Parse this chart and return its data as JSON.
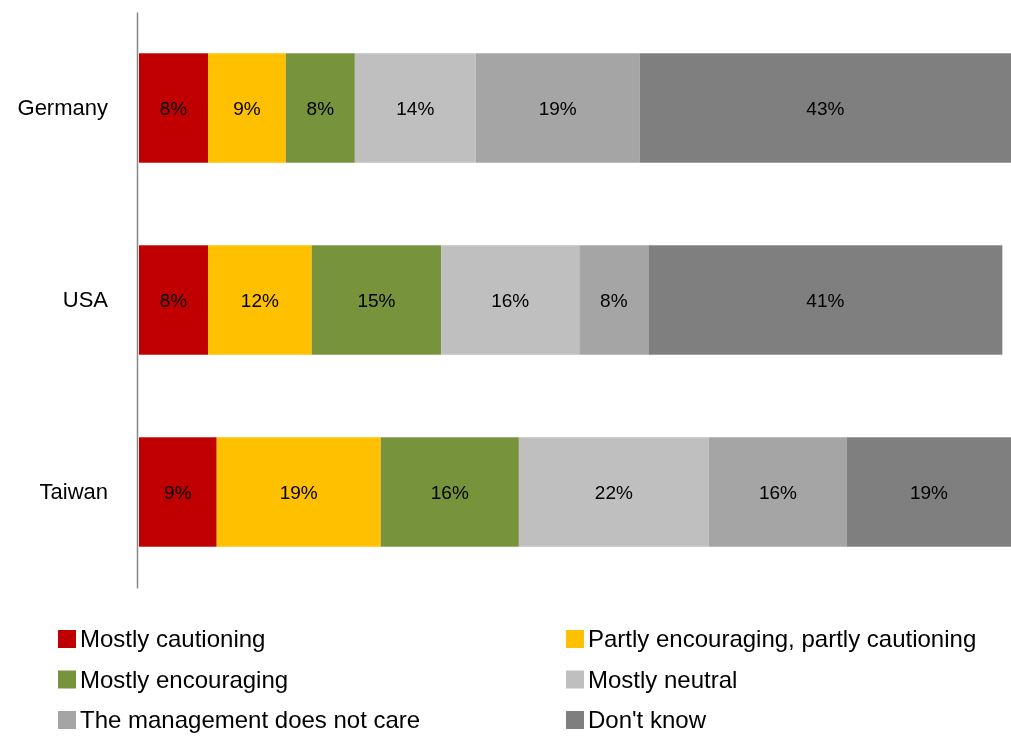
{
  "chart_data": {
    "type": "bar",
    "orientation": "horizontal",
    "stacked": true,
    "categories": [
      "Germany",
      "USA",
      "Taiwan"
    ],
    "series": [
      {
        "name": "Mostly cautioning",
        "color": "#c00000",
        "values": [
          8,
          8,
          9
        ],
        "value_labels": [
          "8%",
          "8%",
          "9%"
        ]
      },
      {
        "name": "Partly encouraging, partly cautioning",
        "color": "#ffc000",
        "values": [
          9,
          12,
          19
        ],
        "value_labels": [
          "9%",
          "12%",
          "19%"
        ]
      },
      {
        "name": "Mostly encouraging",
        "color": "#77933c",
        "values": [
          8,
          15,
          16
        ],
        "value_labels": [
          "8%",
          "15%",
          "16%"
        ]
      },
      {
        "name": "Mostly neutral",
        "color": "#bfbfbf",
        "values": [
          14,
          16,
          22
        ],
        "value_labels": [
          "14%",
          "16%",
          "22%"
        ]
      },
      {
        "name": "The management does not care",
        "color": "#a5a5a5",
        "values": [
          19,
          8,
          16
        ],
        "value_labels": [
          "19%",
          "8%",
          "16%"
        ]
      },
      {
        "name": "Don't know",
        "color": "#7f7f7f",
        "values": [
          43,
          41,
          19
        ],
        "value_labels": [
          "43%",
          "41%",
          "19%"
        ]
      }
    ],
    "legend": "bottom",
    "tick_labels": "y"
  }
}
